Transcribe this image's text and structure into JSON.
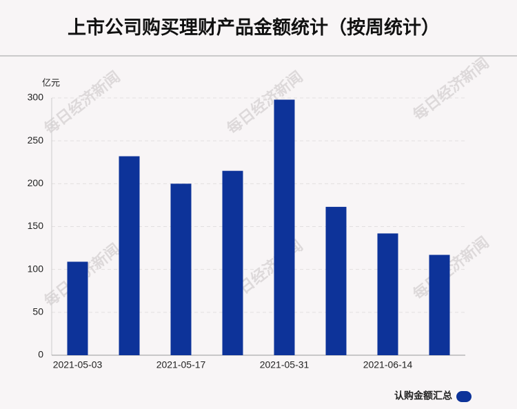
{
  "chart_data": {
    "type": "bar",
    "title": "上市公司购买理财产品金额统计（按周统计）",
    "y_unit": "亿元",
    "watermark": "每日经济新闻",
    "categories": [
      "2021-05-03",
      null,
      "2021-05-17",
      null,
      "2021-05-31",
      null,
      "2021-06-14",
      null
    ],
    "series": [
      {
        "name": "认购金额汇总",
        "color": "#0d3399",
        "values": [
          109,
          232,
          200,
          215,
          298,
          173,
          142,
          117
        ]
      }
    ],
    "ylim": [
      0,
      300
    ],
    "yticks": [
      0,
      50,
      100,
      150,
      200,
      250,
      300
    ],
    "grid": true,
    "legend": "bottom-right"
  }
}
